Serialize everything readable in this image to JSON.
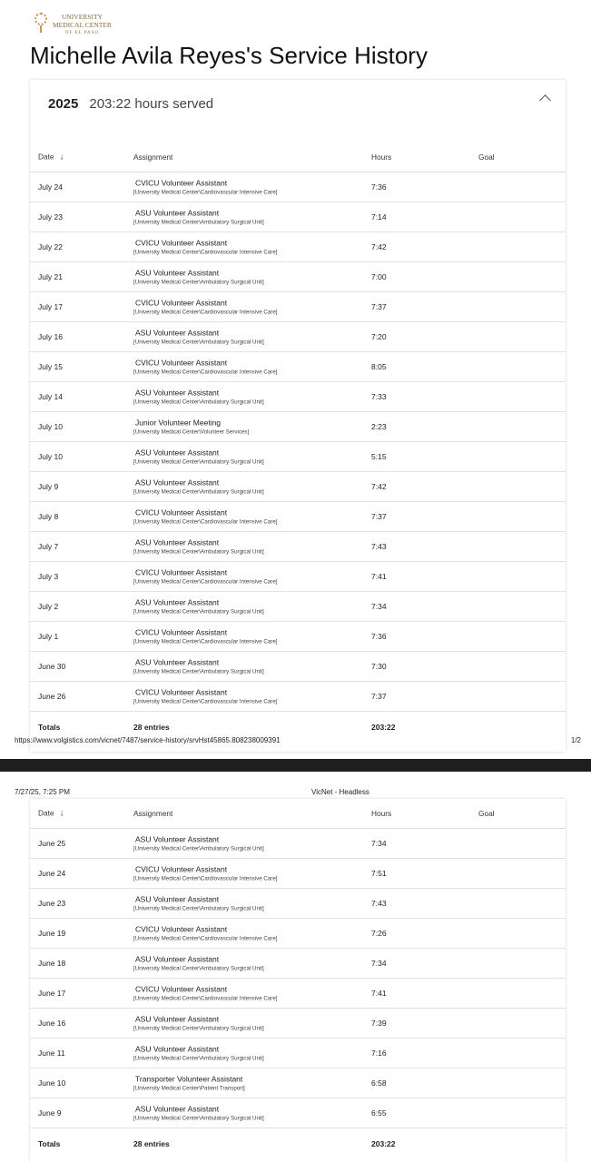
{
  "logo": {
    "line1": "UNIVERSITY",
    "line2": "MEDICAL CENTER",
    "line3": "OF EL PASO"
  },
  "page_title": "Michelle Avila Reyes's Service History",
  "year": "2025",
  "hours_served": "203:22 hours served",
  "columns": {
    "date": "Date",
    "assignment": "Assignment",
    "hours": "Hours",
    "goal": "Goal"
  },
  "sort_icon": "arrow-down-icon",
  "collapse_icon": "chevron-up-icon",
  "page1_rows": [
    {
      "date": "July 24",
      "title": "CVICU Volunteer Assistant",
      "path": "[University Medical Center\\Cardiovascular Intensive Care]",
      "hours": "7:36"
    },
    {
      "date": "July 23",
      "title": "ASU Volunteer Assistant",
      "path": "[University Medical Center\\Ambulatory Surgical Unit]",
      "hours": "7:14"
    },
    {
      "date": "July 22",
      "title": "CVICU Volunteer Assistant",
      "path": "[University Medical Center\\Cardiovascular Intensive Care]",
      "hours": "7:42"
    },
    {
      "date": "July 21",
      "title": "ASU Volunteer Assistant",
      "path": "[University Medical Center\\Ambulatory Surgical Unit]",
      "hours": "7:00"
    },
    {
      "date": "July 17",
      "title": "CVICU Volunteer Assistant",
      "path": "[University Medical Center\\Cardiovascular Intensive Care]",
      "hours": "7:37"
    },
    {
      "date": "July 16",
      "title": "ASU Volunteer Assistant",
      "path": "[University Medical Center\\Ambulatory Surgical Unit]",
      "hours": "7:20"
    },
    {
      "date": "July 15",
      "title": "CVICU Volunteer Assistant",
      "path": "[University Medical Center\\Cardiovascular Intensive Care]",
      "hours": "8:05"
    },
    {
      "date": "July 14",
      "title": "ASU Volunteer Assistant",
      "path": "[University Medical Center\\Ambulatory Surgical Unit]",
      "hours": "7:33"
    },
    {
      "date": "July 10",
      "title": "Junior Volunteer Meeting",
      "path": "[University Medical Center\\Volunteer Services]",
      "hours": "2:23"
    },
    {
      "date": "July 10",
      "title": "ASU Volunteer Assistant",
      "path": "[University Medical Center\\Ambulatory Surgical Unit]",
      "hours": "5:15"
    },
    {
      "date": "July 9",
      "title": "ASU Volunteer Assistant",
      "path": "[University Medical Center\\Ambulatory Surgical Unit]",
      "hours": "7:42"
    },
    {
      "date": "July 8",
      "title": "CVICU Volunteer Assistant",
      "path": "[University Medical Center\\Cardiovascular Intensive Care]",
      "hours": "7:37"
    },
    {
      "date": "July 7",
      "title": "ASU Volunteer Assistant",
      "path": "[University Medical Center\\Ambulatory Surgical Unit]",
      "hours": "7:43"
    },
    {
      "date": "July 3",
      "title": "CVICU Volunteer Assistant",
      "path": "[University Medical Center\\Cardiovascular Intensive Care]",
      "hours": "7:41"
    },
    {
      "date": "July 2",
      "title": "ASU Volunteer Assistant",
      "path": "[University Medical Center\\Ambulatory Surgical Unit]",
      "hours": "7:34"
    },
    {
      "date": "July 1",
      "title": "CVICU Volunteer Assistant",
      "path": "[University Medical Center\\Cardiovascular Intensive Care]",
      "hours": "7:36"
    },
    {
      "date": "June 30",
      "title": "ASU Volunteer Assistant",
      "path": "[University Medical Center\\Ambulatory Surgical Unit]",
      "hours": "7:30"
    },
    {
      "date": "June 26",
      "title": "CVICU Volunteer Assistant",
      "path": "[University Medical Center\\Cardiovascular Intensive Care]",
      "hours": "7:37"
    }
  ],
  "page2_rows": [
    {
      "date": "June 25",
      "title": "ASU Volunteer Assistant",
      "path": "[University Medical Center\\Ambulatory Surgical Unit]",
      "hours": "7:34"
    },
    {
      "date": "June 24",
      "title": "CVICU Volunteer Assistant",
      "path": "[University Medical Center\\Cardiovascular Intensive Care]",
      "hours": "7:51"
    },
    {
      "date": "June 23",
      "title": "ASU Volunteer Assistant",
      "path": "[University Medical Center\\Ambulatory Surgical Unit]",
      "hours": "7:43"
    },
    {
      "date": "June 19",
      "title": "CVICU Volunteer Assistant",
      "path": "[University Medical Center\\Cardiovascular Intensive Care]",
      "hours": "7:26"
    },
    {
      "date": "June 18",
      "title": "ASU Volunteer Assistant",
      "path": "[University Medical Center\\Ambulatory Surgical Unit]",
      "hours": "7:34"
    },
    {
      "date": "June 17",
      "title": "CVICU Volunteer Assistant",
      "path": "[University Medical Center\\Cardiovascular Intensive Care]",
      "hours": "7:41"
    },
    {
      "date": "June 16",
      "title": "ASU Volunteer Assistant",
      "path": "[University Medical Center\\Ambulatory Surgical Unit]",
      "hours": "7:39"
    },
    {
      "date": "June 11",
      "title": "ASU Volunteer Assistant",
      "path": "[University Medical Center\\Ambulatory Surgical Unit]",
      "hours": "7:16"
    },
    {
      "date": "June 10",
      "title": "Transporter Volunteer Assistant",
      "path": "[University Medical Center\\Patient Transport]",
      "hours": "6:58"
    },
    {
      "date": "June 9",
      "title": "ASU Volunteer Assistant",
      "path": "[University Medical Center\\Ambulatory Surgical Unit]",
      "hours": "6:55"
    }
  ],
  "totals": {
    "label": "Totals",
    "entries": "28 entries",
    "hours": "203:22"
  },
  "print": {
    "url": "https://www.volgistics.com/vicnet/7487/service-history/srvHst45865.808238009391",
    "page": "1/2",
    "datetime": "7/27/25, 7:25 PM",
    "doc_title": "VicNet - Headless"
  }
}
